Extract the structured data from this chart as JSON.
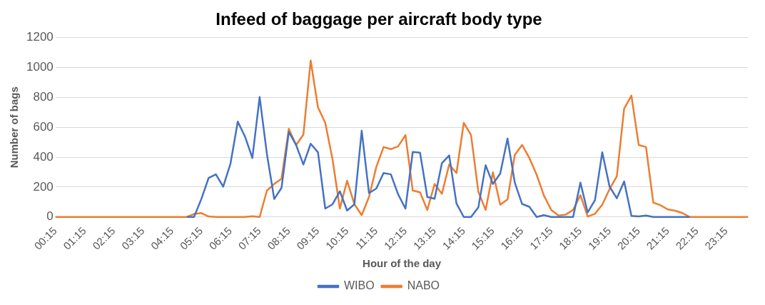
{
  "chart_data": {
    "type": "line",
    "title": "Infeed of baggage per aircraft body type",
    "xlabel": "Hour of the day",
    "ylabel": "Number of bags",
    "categories": [
      "00:15",
      null,
      null,
      null,
      "01:15",
      null,
      null,
      null,
      "02:15",
      null,
      null,
      null,
      "03:15",
      null,
      null,
      null,
      "04:15",
      null,
      null,
      null,
      "05:15",
      null,
      null,
      null,
      "06:15",
      null,
      null,
      null,
      "07:15",
      null,
      null,
      null,
      "08:15",
      null,
      null,
      null,
      "09:15",
      null,
      null,
      null,
      "10:15",
      null,
      null,
      null,
      "11:15",
      null,
      null,
      null,
      "12:15",
      null,
      null,
      null,
      "13:15",
      null,
      null,
      null,
      "14:15",
      null,
      null,
      null,
      "15:15",
      null,
      null,
      null,
      "16:15",
      null,
      null,
      null,
      "17:15",
      null,
      null,
      null,
      "18:15",
      null,
      null,
      null,
      "19:15",
      null,
      null,
      null,
      "20:15",
      null,
      null,
      null,
      "21:15",
      null,
      null,
      null,
      "22:15",
      null,
      null,
      null,
      "23:15",
      null,
      null,
      null
    ],
    "series": [
      {
        "name": "WIBO",
        "color": "#4472c4",
        "values": [
          null,
          null,
          null,
          null,
          null,
          null,
          null,
          null,
          null,
          null,
          null,
          null,
          null,
          null,
          null,
          null,
          null,
          null,
          0,
          0,
          120,
          261,
          285,
          203,
          357,
          638,
          537,
          395,
          803,
          420,
          120,
          195,
          569,
          482,
          351,
          490,
          433,
          56,
          85,
          172,
          43,
          85,
          577,
          160,
          190,
          294,
          285,
          151,
          56,
          435,
          430,
          134,
          122,
          360,
          412,
          90,
          0,
          0,
          64,
          346,
          221,
          290,
          525,
          230,
          87,
          68,
          0,
          12,
          0,
          0,
          0,
          0,
          230,
          30,
          113,
          433,
          203,
          125,
          238,
          7,
          3,
          9,
          0,
          0,
          0,
          0,
          0,
          0,
          null,
          null,
          null,
          null,
          null,
          null,
          null,
          null
        ]
      },
      {
        "name": "NABO",
        "color": "#ed7d31",
        "values": [
          0,
          0,
          0,
          0,
          0,
          0,
          0,
          0,
          0,
          0,
          0,
          0,
          0,
          0,
          0,
          0,
          0,
          0,
          0,
          20,
          26,
          3,
          0,
          0,
          0,
          0,
          0,
          5,
          0,
          177,
          221,
          256,
          590,
          482,
          551,
          1047,
          734,
          630,
          386,
          56,
          242,
          85,
          12,
          134,
          334,
          468,
          454,
          473,
          548,
          177,
          165,
          47,
          221,
          155,
          351,
          294,
          630,
          548,
          169,
          47,
          299,
          82,
          117,
          416,
          482,
          395,
          282,
          143,
          47,
          9,
          16,
          47,
          146,
          3,
          21,
          82,
          186,
          273,
          725,
          812,
          482,
          468,
          96,
          78,
          50,
          42,
          26,
          0,
          0,
          0,
          0,
          0,
          0,
          0,
          0,
          0
        ]
      }
    ],
    "ylim": [
      0,
      1200
    ],
    "yticks": [
      0,
      200,
      400,
      600,
      800,
      1000,
      1200
    ],
    "grid": "y",
    "legend": "bottom",
    "marker": "none",
    "line_style": "solid"
  }
}
